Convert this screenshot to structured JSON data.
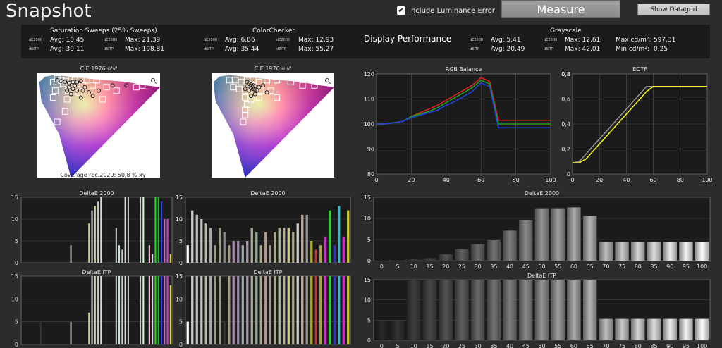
{
  "header": {
    "title": "Snapshot",
    "luminance_error_label": "Include Luminance Error",
    "measure_label": "Measure",
    "datagrid_label": "Show Datagrid"
  },
  "stats": {
    "saturation": {
      "title": "Saturation Sweeps (25% Sweeps)",
      "de_label": "dE2000",
      "itp_label": "dEITP",
      "de_avg": "Avg: 10,45",
      "de_max": "Max: 21,39",
      "itp_avg": "Avg: 39,11",
      "itp_max": "Max: 108,81"
    },
    "colorchecker": {
      "title": "ColorChecker",
      "de_label": "dE2000",
      "itp_label": "dEITP",
      "de_avg": "Avg: 6,86",
      "de_max": "Max: 12,93",
      "itp_avg": "Avg: 35,44",
      "itp_max": "Max: 55,27"
    },
    "display_performance": "Display Performance",
    "grayscale": {
      "title": "Grayscale",
      "de_label": "dE2000",
      "itp_label": "dEITP",
      "de_avg": "Avg: 5,41",
      "de_max": "Max: 12,61",
      "itp_avg": "Avg: 20,49",
      "itp_max": "Max: 42,01",
      "max_cd": "Max cd/m²:",
      "max_cd_val": "597,31",
      "min_cd": "Min cd/m²:",
      "min_cd_val": "0,25"
    }
  },
  "colors": {
    "red": "#e02020",
    "green": "#20a020",
    "blue": "#2040e0",
    "gray": "#909090",
    "yellow": "#f0f020",
    "panel": "#1d1d1d"
  },
  "chart_data": [
    {
      "type": "scatter",
      "id": "cie1",
      "title": "CIE 1976 u'v'",
      "annotation": "Coverage rec.2020: 50,8 % xy",
      "icon": "magnifier-icon",
      "targets": [
        [
          0.08,
          0.55
        ],
        [
          0.1,
          0.57
        ],
        [
          0.12,
          0.56
        ],
        [
          0.145,
          0.555
        ],
        [
          0.19,
          0.56
        ],
        [
          0.09,
          0.5
        ],
        [
          0.08,
          0.46
        ],
        [
          0.13,
          0.54
        ],
        [
          0.17,
          0.53
        ],
        [
          0.23,
          0.53
        ],
        [
          0.28,
          0.53
        ],
        [
          0.35,
          0.52
        ],
        [
          0.4,
          0.5
        ],
        [
          0.5,
          0.52
        ],
        [
          0.53,
          0.53
        ],
        [
          0.33,
          0.45
        ],
        [
          0.15,
          0.45
        ],
        [
          0.14,
          0.38
        ],
        [
          0.1,
          0.32
        ],
        [
          0.2,
          0.54
        ],
        [
          0.25,
          0.56
        ],
        [
          0.3,
          0.56
        ],
        [
          0.21,
          0.49
        ],
        [
          0.155,
          0.5
        ]
      ],
      "measured": [
        [
          0.1,
          0.56
        ],
        [
          0.12,
          0.555
        ],
        [
          0.14,
          0.55
        ],
        [
          0.16,
          0.545
        ],
        [
          0.18,
          0.55
        ],
        [
          0.2,
          0.55
        ],
        [
          0.22,
          0.555
        ],
        [
          0.16,
          0.52
        ],
        [
          0.18,
          0.51
        ],
        [
          0.2,
          0.5
        ],
        [
          0.23,
          0.5
        ],
        [
          0.26,
          0.49
        ],
        [
          0.31,
          0.5
        ],
        [
          0.38,
          0.53
        ],
        [
          0.45,
          0.53
        ],
        [
          0.28,
          0.47
        ],
        [
          0.22,
          0.46
        ],
        [
          0.17,
          0.48
        ],
        [
          0.15,
          0.5
        ],
        [
          0.19,
          0.53
        ],
        [
          0.24,
          0.52
        ]
      ]
    },
    {
      "type": "scatter",
      "id": "cie2",
      "title": "CIE 1976 u'v'",
      "icon": "magnifier-icon",
      "targets": [
        [
          0.09,
          0.56
        ],
        [
          0.12,
          0.56
        ],
        [
          0.15,
          0.55
        ],
        [
          0.18,
          0.56
        ],
        [
          0.21,
          0.56
        ],
        [
          0.24,
          0.55
        ],
        [
          0.28,
          0.56
        ],
        [
          0.33,
          0.56
        ],
        [
          0.4,
          0.55
        ],
        [
          0.46,
          0.53
        ],
        [
          0.52,
          0.53
        ],
        [
          0.11,
          0.52
        ],
        [
          0.14,
          0.51
        ],
        [
          0.17,
          0.5
        ],
        [
          0.2,
          0.51
        ],
        [
          0.25,
          0.5
        ],
        [
          0.3,
          0.5
        ],
        [
          0.17,
          0.46
        ],
        [
          0.2,
          0.45
        ],
        [
          0.24,
          0.46
        ],
        [
          0.33,
          0.46
        ],
        [
          0.18,
          0.42
        ],
        [
          0.17,
          0.39
        ],
        [
          0.17,
          0.36
        ],
        [
          0.16,
          0.32
        ]
      ],
      "measured": [
        [
          0.18,
          0.55
        ],
        [
          0.19,
          0.54
        ],
        [
          0.2,
          0.535
        ],
        [
          0.21,
          0.53
        ],
        [
          0.22,
          0.525
        ],
        [
          0.2,
          0.515
        ],
        [
          0.21,
          0.51
        ],
        [
          0.22,
          0.505
        ],
        [
          0.19,
          0.5
        ],
        [
          0.23,
          0.5
        ],
        [
          0.24,
          0.52
        ],
        [
          0.18,
          0.525
        ],
        [
          0.17,
          0.51
        ],
        [
          0.22,
          0.48
        ],
        [
          0.2,
          0.47
        ],
        [
          0.26,
          0.53
        ],
        [
          0.28,
          0.49
        ]
      ]
    },
    {
      "type": "line",
      "id": "rgb",
      "title": "RGB Balance",
      "x": [
        0,
        5,
        10,
        15,
        20,
        25,
        30,
        35,
        40,
        45,
        50,
        55,
        60,
        65,
        70,
        75,
        80,
        85,
        90,
        95,
        100
      ],
      "xticks": [
        0,
        20,
        40,
        60,
        80,
        100
      ],
      "ylim": [
        80,
        120
      ],
      "yticks": [
        80,
        90,
        100,
        110
      ],
      "series": [
        {
          "color": "#e02020",
          "values": [
            100,
            100,
            100.5,
            101,
            103,
            104.5,
            106,
            107.5,
            109.5,
            111.5,
            113.5,
            115.5,
            118.5,
            117,
            101.5,
            101.5,
            101.5,
            101.5,
            101.5,
            101.5,
            101.5
          ]
        },
        {
          "color": "#20a020",
          "values": [
            100,
            100,
            100.5,
            101,
            103,
            104,
            105,
            106.5,
            108.5,
            110.5,
            112.5,
            114.5,
            117.5,
            116,
            100,
            100,
            100,
            100,
            100,
            100,
            100
          ]
        },
        {
          "color": "#2040e0",
          "values": [
            100,
            100,
            100.5,
            101,
            102.5,
            103.5,
            104.5,
            105.5,
            107.5,
            109,
            111,
            113,
            116.5,
            115,
            98.5,
            98.5,
            98.5,
            98.5,
            98.5,
            98.5,
            98.5
          ]
        }
      ]
    },
    {
      "type": "line",
      "id": "eotf",
      "title": "EOTF",
      "xticks": [
        0,
        20,
        40,
        60,
        80,
        100
      ],
      "ylim": [
        0,
        0.8
      ],
      "yticks": [
        0,
        0.2,
        0.4,
        0.6,
        0.8
      ],
      "series": [
        {
          "color": "#909090",
          "x": [
            0,
            5,
            10,
            15,
            20,
            25,
            30,
            35,
            40,
            45,
            50,
            55,
            60,
            65,
            70,
            75,
            80,
            85,
            90,
            95,
            100
          ],
          "values": [
            0.09,
            0.1,
            0.16,
            0.22,
            0.28,
            0.34,
            0.4,
            0.46,
            0.52,
            0.58,
            0.64,
            0.7,
            0.7,
            0.7,
            0.7,
            0.7,
            0.7,
            0.7,
            0.7,
            0.7,
            0.7
          ]
        },
        {
          "color": "#f0f020",
          "x": [
            0,
            5,
            10,
            15,
            20,
            25,
            30,
            35,
            40,
            45,
            50,
            55,
            60,
            65,
            70,
            75,
            80,
            85,
            90,
            95,
            100
          ],
          "values": [
            0.09,
            0.09,
            0.12,
            0.18,
            0.24,
            0.3,
            0.36,
            0.42,
            0.48,
            0.54,
            0.6,
            0.66,
            0.7,
            0.7,
            0.7,
            0.7,
            0.7,
            0.7,
            0.7,
            0.7,
            0.7
          ]
        }
      ]
    },
    {
      "type": "bar",
      "id": "sat_de",
      "title": "DeltaE 2000",
      "ylim": [
        0,
        15
      ],
      "yticks": [
        0,
        5,
        10,
        15
      ],
      "values": [
        0,
        0,
        0,
        0,
        0,
        0,
        0,
        0,
        0,
        0,
        0,
        0,
        0,
        0,
        0,
        0,
        4,
        0,
        0,
        0,
        0,
        0,
        9,
        12,
        13,
        14,
        15,
        0,
        0,
        0,
        0,
        8,
        4,
        3,
        15,
        15,
        0,
        0,
        0,
        15,
        15,
        0,
        4,
        2,
        15,
        15,
        14,
        10,
        10,
        2
      ],
      "colors": [
        "#777",
        "#777",
        "#777",
        "#777",
        "#777",
        "#777",
        "#777",
        "#777",
        "#777",
        "#777",
        "#777",
        "#777",
        "#777",
        "#777",
        "#777",
        "#777",
        "#bbb",
        "#777",
        "#777",
        "#777",
        "#777",
        "#777",
        "#cc9",
        "#ddd",
        "#cc9",
        "#ccc",
        "#ddd",
        "#777",
        "#777",
        "#777",
        "#777",
        "#bcb",
        "#cdd",
        "#ccc",
        "#ddd",
        "#bbb",
        "#777",
        "#777",
        "#777",
        "#ccc",
        "#cfc",
        "#777",
        "#fcd",
        "#ddd",
        "#2d2",
        "#2b2",
        "#34f",
        "#c6c",
        "#c4c",
        "#dd2"
      ]
    },
    {
      "type": "bar",
      "id": "cc_de",
      "title": "DeltaE 2000",
      "ylim": [
        0,
        15
      ],
      "yticks": [
        0,
        5,
        10,
        15
      ],
      "values": [
        4,
        12,
        11,
        10,
        9,
        8,
        4,
        8,
        7,
        4,
        5,
        5,
        4,
        5,
        8,
        7,
        4,
        7,
        4,
        7,
        8,
        8,
        8,
        7,
        9,
        11,
        11,
        5,
        3,
        4,
        6,
        12,
        4,
        13,
        6,
        12
      ],
      "colors": [
        "#fff",
        "#ccc",
        "#bbb",
        "#bbb",
        "#bba",
        "#aaa",
        "#998",
        "#998",
        "#888",
        "#a98",
        "#a8a",
        "#98a",
        "#9aa",
        "#a9a",
        "#aa9",
        "#9a9",
        "#aa8",
        "#b98",
        "#999",
        "#aa8",
        "#ab9",
        "#ba9",
        "#cc9",
        "#aa8",
        "#ccc",
        "#ba9",
        "#999",
        "#aa3",
        "#c33",
        "#aa3",
        "#c3c",
        "#3c3",
        "#33c",
        "#3bc",
        "#c3c",
        "#cc3"
      ]
    },
    {
      "type": "bar",
      "id": "gray_de",
      "title": "DeltaE 2000",
      "categories": [
        "0",
        "5",
        "10",
        "15",
        "20",
        "25",
        "30",
        "35",
        "40",
        "45",
        "50",
        "55",
        "60",
        "65",
        "70",
        "75",
        "80",
        "85",
        "90",
        "95",
        "100"
      ],
      "ylim": [
        0,
        15
      ],
      "yticks": [
        0,
        5,
        10,
        15
      ],
      "values": [
        0.1,
        0.1,
        0.3,
        0.6,
        1.5,
        2.7,
        3.9,
        5,
        7.1,
        9.5,
        12.4,
        12.4,
        12.6,
        10.6,
        4.4,
        4.4,
        4.4,
        4.4,
        4.4,
        4.4,
        4.4
      ]
    },
    {
      "type": "bar",
      "id": "sat_itp",
      "title": "DeltaE ITP",
      "ylim": [
        0,
        15
      ],
      "yticks": [
        0,
        5,
        10,
        15
      ],
      "values": [
        0,
        0,
        0,
        0,
        0,
        0,
        5,
        0,
        0,
        0,
        0,
        0,
        0,
        0,
        0,
        0,
        5,
        0,
        0,
        0,
        0,
        0,
        7,
        15,
        15,
        15,
        15,
        0,
        0,
        0,
        0,
        15,
        15,
        15,
        15,
        15,
        0,
        0,
        0,
        15,
        15,
        0,
        15,
        15,
        15,
        15,
        15,
        15,
        15,
        13
      ],
      "colors": [
        "#777",
        "#777",
        "#777",
        "#777",
        "#777",
        "#777",
        "#333",
        "#777",
        "#777",
        "#777",
        "#777",
        "#777",
        "#777",
        "#777",
        "#777",
        "#777",
        "#bbb",
        "#777",
        "#777",
        "#777",
        "#777",
        "#777",
        "#cc9",
        "#ddd",
        "#cc9",
        "#ccc",
        "#ddd",
        "#777",
        "#777",
        "#777",
        "#777",
        "#bcb",
        "#cdd",
        "#ccc",
        "#ddd",
        "#bbb",
        "#777",
        "#777",
        "#777",
        "#ccc",
        "#cfc",
        "#777",
        "#fcd",
        "#ddd",
        "#2d2",
        "#2b2",
        "#34f",
        "#c6c",
        "#c4c",
        "#dd2"
      ]
    },
    {
      "type": "bar",
      "id": "cc_itp",
      "title": "DeltaE ITP",
      "ylim": [
        0,
        15
      ],
      "yticks": [
        0,
        5,
        10,
        15
      ],
      "values": [
        5,
        15,
        15,
        15,
        15,
        15,
        15,
        15,
        5,
        15,
        15,
        15,
        15,
        15,
        15,
        15,
        15,
        15,
        15,
        15,
        15,
        15,
        15,
        15,
        15,
        15,
        15,
        15,
        15,
        15,
        15,
        15,
        15,
        15,
        15,
        15
      ],
      "colors": [
        "#fff",
        "#ccc",
        "#bbb",
        "#bbb",
        "#bba",
        "#aaa",
        "#998",
        "#998",
        "#333",
        "#a98",
        "#a8a",
        "#98a",
        "#9aa",
        "#a9a",
        "#aa9",
        "#9a9",
        "#aa8",
        "#b98",
        "#999",
        "#aa8",
        "#ab9",
        "#ba9",
        "#cc9",
        "#aa8",
        "#ccc",
        "#ba9",
        "#999",
        "#aa3",
        "#c33",
        "#aa3",
        "#c3c",
        "#3c3",
        "#33c",
        "#3bc",
        "#c3c",
        "#cc3"
      ]
    },
    {
      "type": "bar",
      "id": "gray_itp",
      "title": "DeltaE ITP",
      "categories": [
        "0",
        "5",
        "10",
        "15",
        "20",
        "25",
        "30",
        "35",
        "40",
        "45",
        "50",
        "55",
        "60",
        "65",
        "70",
        "75",
        "80",
        "85",
        "90",
        "95",
        "100"
      ],
      "ylim": [
        0,
        15
      ],
      "yticks": [
        0,
        5,
        10,
        15
      ],
      "values": [
        4.8,
        4.8,
        15,
        15,
        15,
        15,
        15,
        15,
        15,
        15,
        15,
        15,
        15,
        15,
        5.3,
        5.3,
        5.3,
        5.3,
        5.3,
        5.3,
        5.3
      ]
    }
  ]
}
